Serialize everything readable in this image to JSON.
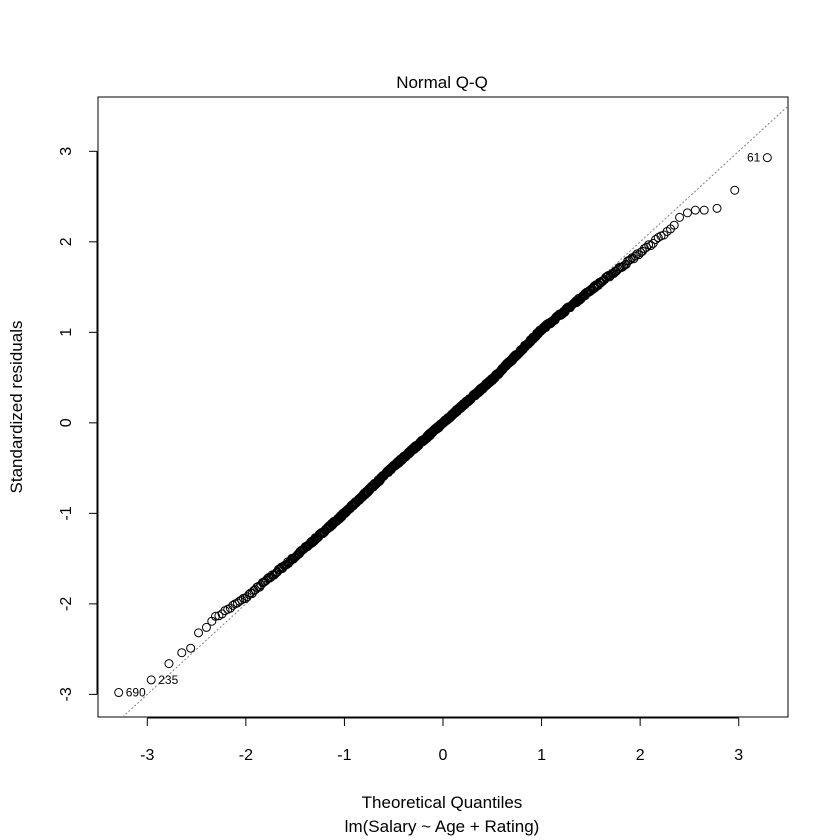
{
  "chart_data": {
    "type": "scatter",
    "title": "Normal Q-Q",
    "xlabel": "Theoretical Quantiles",
    "sublabel": "lm(Salary ~ Age + Rating)",
    "ylabel": "Standardized residuals",
    "xlim": [
      -3.5,
      3.5
    ],
    "ylim": [
      -3.25,
      3.6
    ],
    "xticks": [
      -3,
      -2,
      -1,
      0,
      1,
      2,
      3
    ],
    "xtick_labels": [
      "-3",
      "-2",
      "-1",
      "0",
      "1",
      "2",
      "3"
    ],
    "yticks": [
      -3,
      -2,
      -1,
      0,
      1,
      2,
      3
    ],
    "ytick_labels": [
      "-3",
      "-2",
      "-1",
      "0",
      "1",
      "2",
      "3"
    ],
    "reference_line": {
      "x": [
        -3.5,
        3.5
      ],
      "y": [
        -3.5,
        3.5
      ]
    },
    "grid": false,
    "point_color": "#000000",
    "line_color": "#808080",
    "n_points": 1000,
    "outliers": [
      {
        "label": "690",
        "x": -3.29,
        "y": -2.98
      },
      {
        "label": "235",
        "x": -2.96,
        "y": -2.84
      },
      {
        "label": "61",
        "x": 3.29,
        "y": 2.93
      }
    ],
    "tail_points": [
      {
        "x": -2.78,
        "y": -2.66
      },
      {
        "x": -2.65,
        "y": -2.54
      },
      {
        "x": -2.56,
        "y": -2.49
      },
      {
        "x": -2.48,
        "y": -2.32
      },
      {
        "x": -2.4,
        "y": -2.26
      },
      {
        "x": 2.4,
        "y": 2.27
      },
      {
        "x": 2.48,
        "y": 2.32
      },
      {
        "x": 2.56,
        "y": 2.35
      },
      {
        "x": 2.65,
        "y": 2.35
      },
      {
        "x": 2.78,
        "y": 2.37
      },
      {
        "x": 2.96,
        "y": 2.57
      }
    ],
    "curve_anchors": [
      {
        "x": -2.35,
        "y": -2.18
      },
      {
        "x": -2.0,
        "y": -1.93
      },
      {
        "x": -1.5,
        "y": -1.48
      },
      {
        "x": -1.0,
        "y": -1.0
      },
      {
        "x": -0.5,
        "y": -0.48
      },
      {
        "x": 0.0,
        "y": 0.0
      },
      {
        "x": 0.5,
        "y": 0.48
      },
      {
        "x": 1.0,
        "y": 1.03
      },
      {
        "x": 1.5,
        "y": 1.47
      },
      {
        "x": 2.0,
        "y": 1.88
      },
      {
        "x": 2.35,
        "y": 2.18
      }
    ]
  }
}
